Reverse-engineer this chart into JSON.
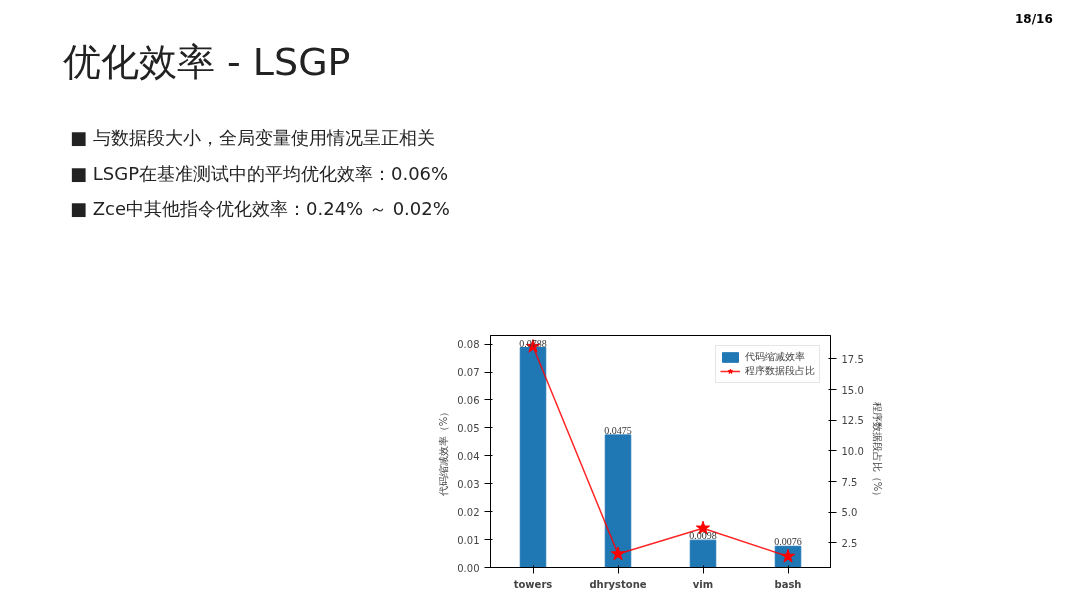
{
  "chart_data": {
    "type": "bar",
    "title": "优化效率 - LSGP",
    "annotations": [
      "■ 与数据段大小，全局变量使用情况呈正相关",
      "■ LSGP在基准测试中的平均优化效率：0.06%",
      "■ Zce中其他指令优化效率：0.24% ～ 0.02%",
      "18/16"
    ],
    "categories": [
      "towers",
      "dhrystone",
      "vim",
      "bash"
    ],
    "ylabel": "代码缩减效率（%）",
    "y2label": "程序数据段占比（%）",
    "series": [
      {
        "name": "代码缩减效率",
        "color": "#1f77b4",
        "values": [
          0.0788,
          0.0475,
          0.0098,
          0.0076
        ],
        "value_labels": [
          "0.0788",
          "0.0475",
          "0.0098",
          "0.0076"
        ]
      },
      {
        "name": "程序数据段占比",
        "type": "line",
        "axis": "y2",
        "color": "#ff0000",
        "marker": "star",
        "values": [
          18.5,
          1.6,
          3.7,
          1.4
        ]
      }
    ],
    "ylim": [
      0,
      0.0831
    ],
    "yticks": [
      {
        "value": 0,
        "label": "0.00"
      },
      {
        "value": 0.01,
        "label": "0.01"
      },
      {
        "value": 0.02,
        "label": "0.02"
      },
      {
        "value": 0.03,
        "label": "0.03"
      },
      {
        "value": 0.04,
        "label": "0.04"
      },
      {
        "value": 0.05,
        "label": "0.05"
      },
      {
        "value": 0.06,
        "label": "0.06"
      },
      {
        "value": 0.07,
        "label": "0.07"
      },
      {
        "value": 0.08,
        "label": "0.08"
      }
    ],
    "y2lim": [
      0.5,
      19.4
    ],
    "y2ticks": [
      2.5,
      {
        "value": 5,
        "label": "5.0"
      },
      7.5,
      {
        "value": 10,
        "label": "10.0"
      },
      12.5,
      {
        "value": 15,
        "label": "15.0"
      },
      17.5
    ],
    "legend": "top right",
    "grid": false
  }
}
